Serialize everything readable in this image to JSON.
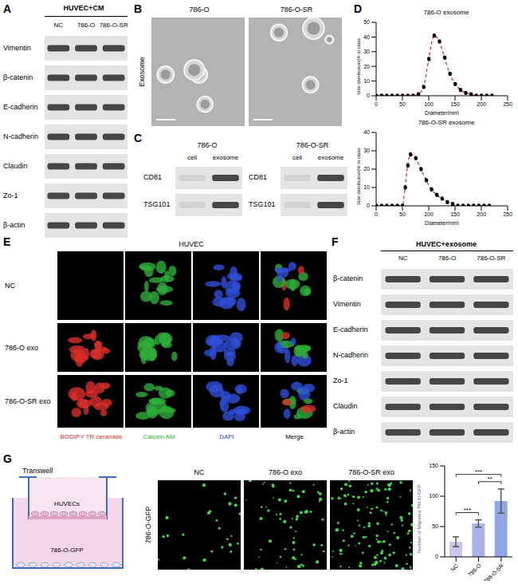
{
  "panels": {
    "A": {
      "label": "A",
      "header": "HUVEC+CM",
      "lanes": [
        "NC",
        "786-O",
        "786-O-SR"
      ],
      "rows": [
        "Vimentin",
        "β-catenin",
        "E-cadherin",
        "N-cadherin",
        "Claudin",
        "Zo-1",
        "β-actin"
      ]
    },
    "B": {
      "label": "B",
      "row_label": "Exosome",
      "images": [
        "786-O",
        "786-O-SR"
      ]
    },
    "C": {
      "label": "C",
      "groups": [
        {
          "title": "786-O",
          "lanes": [
            "cell",
            "exosome"
          ],
          "rows": [
            "CD81",
            "TSG101"
          ]
        },
        {
          "title": "786-O-SR",
          "lanes": [
            "cell",
            "exosome"
          ],
          "rows": [
            "CD81",
            "TSG101"
          ]
        }
      ]
    },
    "D": {
      "label": "D"
    },
    "E": {
      "label": "E",
      "title": "HUVEC",
      "rows": [
        "NC",
        "786-O exo",
        "786-O-SR exo"
      ],
      "channels": [
        {
          "name": "BODIPY TR ceramide",
          "color": "#d9302a"
        },
        {
          "name": "Calcein AM",
          "color": "#2fae3a"
        },
        {
          "name": "DAPI",
          "color": "#2f4fd8"
        },
        {
          "name": "Merge",
          "color": "#000000"
        }
      ]
    },
    "F": {
      "label": "F",
      "header": "HUVEC+exosome",
      "lanes": [
        "NC",
        "786-O",
        "786-O-SR"
      ],
      "rows": [
        "β-catenin",
        "Vimentin",
        "E-cadherin",
        "N-cadherin",
        "Zo-1",
        "Claudin",
        "β-actin"
      ]
    },
    "G": {
      "label": "G",
      "diagram": {
        "title": "Transwell",
        "upper": "HUVECs",
        "lower": "786-O-GFP"
      },
      "image_row_label": "786-O-GFP",
      "images": [
        "NC",
        "786-O exo",
        "786-O-SR exo"
      ]
    }
  },
  "chart_data": [
    {
      "type": "line",
      "title": "786-O exosome",
      "xlabel": "Diameter(nm)",
      "ylabel": "Size distribution(% in class",
      "x": [
        0,
        10,
        20,
        30,
        40,
        50,
        60,
        70,
        80,
        90,
        100,
        110,
        120,
        130,
        140,
        150,
        160,
        170,
        180,
        190,
        200,
        210,
        220
      ],
      "values": [
        0,
        0,
        0,
        0,
        0,
        0,
        0,
        0,
        1,
        6,
        25,
        41,
        37,
        26,
        15,
        8,
        4,
        2,
        1,
        0,
        0,
        0,
        0
      ],
      "color": "#e8322a",
      "marker": "circle",
      "line_style": "dashed",
      "xlim": [
        0,
        250
      ],
      "xticks": [
        0,
        50,
        100,
        150,
        200,
        250
      ],
      "ylim": [
        0,
        50
      ],
      "yticks": [
        0,
        10,
        20,
        30,
        40,
        50
      ]
    },
    {
      "type": "line",
      "title": "786-O-SR exosome",
      "xlabel": "Diameter(nm)",
      "ylabel": "Size distribution(% in class",
      "x": [
        0,
        10,
        20,
        30,
        40,
        50,
        55,
        60,
        65,
        75,
        85,
        95,
        105,
        115,
        125,
        135,
        145,
        155,
        165,
        175,
        185,
        195,
        205,
        215
      ],
      "values": [
        0,
        0,
        0,
        0,
        0,
        0,
        10,
        22,
        28,
        26,
        20,
        14,
        9,
        6,
        4,
        2,
        1,
        0,
        0,
        0,
        0,
        0,
        0,
        0
      ],
      "color": "#e8322a",
      "marker": "circle",
      "line_style": "dashed",
      "xlim": [
        0,
        250
      ],
      "xticks": [
        0,
        50,
        100,
        150,
        200,
        250
      ],
      "ylim": [
        0,
        40
      ],
      "yticks": [
        0,
        10,
        20,
        30,
        40
      ]
    },
    {
      "type": "bar",
      "ylabel": "Number of Migrated 786-O-GFP",
      "categories": [
        "NC",
        "786-O",
        "786-O-SR"
      ],
      "values": [
        25,
        55,
        92
      ],
      "errors": [
        8,
        6,
        20
      ],
      "colors": [
        "#c9c6ee",
        "#a9b3e8",
        "#8fa6e6"
      ],
      "ylim": [
        0,
        150
      ],
      "yticks": [
        0,
        50,
        100,
        150
      ],
      "annotations": [
        {
          "from": "NC",
          "to": "786-O",
          "label": "***"
        },
        {
          "from": "786-O",
          "to": "786-O-SR",
          "label": "**"
        },
        {
          "from": "NC",
          "to": "786-O-SR",
          "label": "***"
        }
      ]
    }
  ]
}
